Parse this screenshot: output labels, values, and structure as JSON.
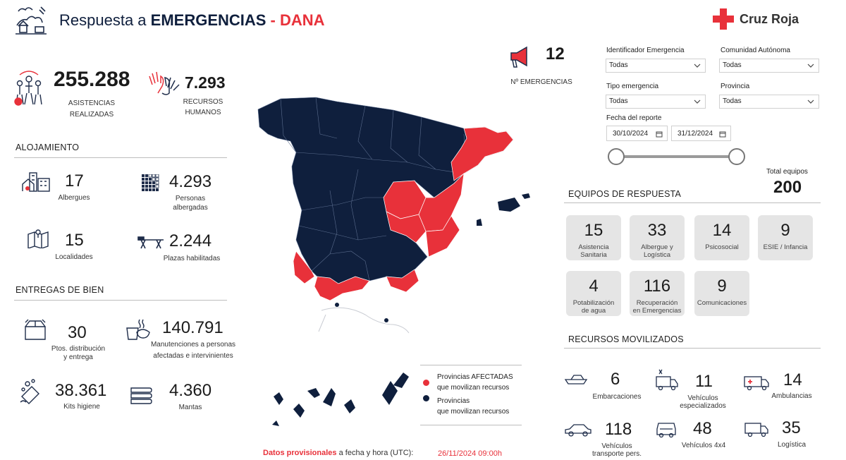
{
  "header": {
    "title_prefix": "Respuesta a ",
    "title_bold": "EMERGENCIAS",
    "title_suffix": " - DANA",
    "brand": "Cruz Roja"
  },
  "kpis": {
    "asistencias": {
      "value": "255.288",
      "label1": "ASISTENCIAS",
      "label2": "REALIZADAS"
    },
    "recursos": {
      "value": "7.293",
      "label1": "RECURSOS",
      "label2": "HUMANOS"
    },
    "emergencias": {
      "value": "12",
      "label": "Nº EMERGENCIAS"
    }
  },
  "alojamiento": {
    "title": "ALOJAMIENTO",
    "albergues": {
      "value": "17",
      "label": "Albergues"
    },
    "personas": {
      "value": "4.293",
      "label1": "Personas",
      "label2": "albergadas"
    },
    "localidades": {
      "value": "15",
      "label": "Localidades"
    },
    "plazas": {
      "value": "2.244",
      "label": "Plazas habilitadas"
    }
  },
  "entregas": {
    "title": "ENTREGAS DE BIEN",
    "puntos": {
      "value": "30",
      "label1": "Ptos. distribución",
      "label2": "y entrega"
    },
    "manutenciones": {
      "value": "140.791",
      "label1": "Manutenciones a personas",
      "label2": "afectadas e intervinientes"
    },
    "kits": {
      "value": "38.361",
      "label": "Kits higiene"
    },
    "mantas": {
      "value": "4.360",
      "label": "Mantas"
    }
  },
  "filters": {
    "identificador": {
      "label": "Identificador Emergencia",
      "value": "Todas"
    },
    "comunidad": {
      "label": "Comunidad Autónoma",
      "value": "Todas"
    },
    "tipo": {
      "label": "Tipo emergencia",
      "value": "Todas"
    },
    "provincia": {
      "label": "Provincia",
      "value": "Todas"
    },
    "fecha": {
      "label": "Fecha del reporte",
      "from": "30/10/2024",
      "to": "31/12/2024"
    }
  },
  "equipos": {
    "title": "EQUIPOS DE RESPUESTA",
    "total_label": "Total equipos",
    "total_value": "200",
    "tiles": [
      {
        "value": "15",
        "label1": "Asistencia",
        "label2": "Sanitaria"
      },
      {
        "value": "33",
        "label1": "Albergue y",
        "label2": "Logística"
      },
      {
        "value": "14",
        "label1": "Psicosocial",
        "label2": ""
      },
      {
        "value": "9",
        "label1": "ESIE / Infancia",
        "label2": ""
      },
      {
        "value": "4",
        "label1": "Potabilización",
        "label2": "de agua"
      },
      {
        "value": "116",
        "label1": "Recuperación",
        "label2": "en Emergencias"
      },
      {
        "value": "9",
        "label1": "Comunicaciones",
        "label2": ""
      }
    ]
  },
  "recursos_movilizados": {
    "title": "RECURSOS MOVILIZADOS",
    "items": [
      {
        "value": "6",
        "label1": "Embarcaciones",
        "label2": "",
        "icon": "boat-icon"
      },
      {
        "value": "11",
        "label1": "Vehículos",
        "label2": "especializados",
        "icon": "van-icon"
      },
      {
        "value": "14",
        "label1": "Ambulancias",
        "label2": "",
        "icon": "ambulance-icon"
      },
      {
        "value": "118",
        "label1": "Vehículos",
        "label2": "transporte pers.",
        "icon": "car-icon"
      },
      {
        "value": "48",
        "label1": "Vehículos 4x4",
        "label2": "",
        "icon": "jeep-icon"
      },
      {
        "value": "35",
        "label1": "Logística",
        "label2": "",
        "icon": "truck-icon"
      }
    ]
  },
  "legend": {
    "affected_line1": "Provincias AFECTADAS",
    "affected_line2": "que movilizan recursos",
    "other_line1": "Provincias",
    "other_line2": "que movilizan recursos"
  },
  "footer": {
    "bold": "Datos provisionales",
    "middle": " a fecha y hora (UTC):",
    "datetime": "26/11/2024 09:00h"
  },
  "colors": {
    "navy": "#0f1f3d",
    "red": "#e8313a",
    "tile": "#e5e5e5"
  }
}
